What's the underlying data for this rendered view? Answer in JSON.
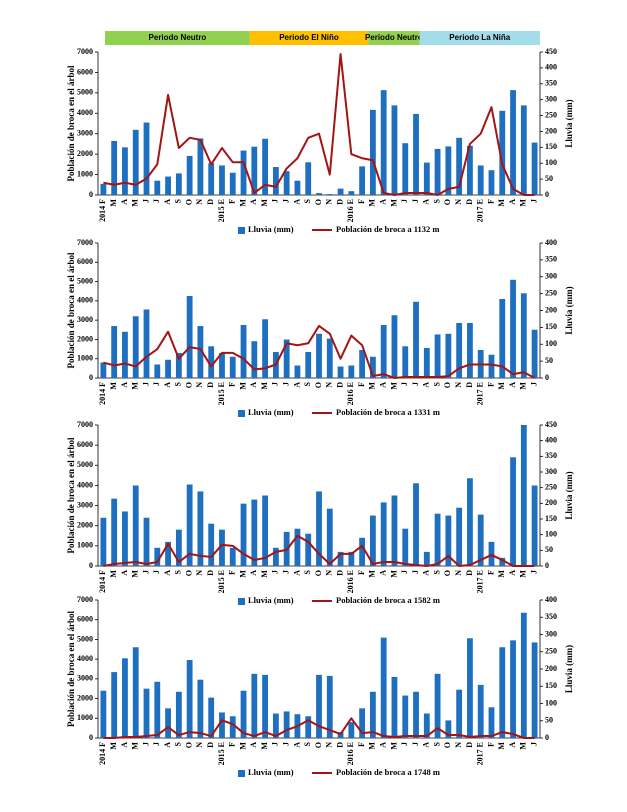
{
  "chart_data": [
    {
      "type": "combo",
      "periods": [
        {
          "label": "Periodo Neutro",
          "color": "#92d050"
        },
        {
          "label": "Periodo El Niño",
          "color": "#ffc000"
        },
        {
          "label": "Periodo Neutro",
          "color": "#92d050"
        },
        {
          "label": "Periodo La Niña",
          "color": "#a5dcea"
        }
      ],
      "y_label": "Población de broca en el árbol",
      "y2_label": "Lluvia (mm)",
      "categories": [
        "2014 F",
        "M",
        "A",
        "M",
        "J",
        "J",
        "A",
        "S",
        "O",
        "N",
        "D",
        "2015 E",
        "F",
        "M",
        "A",
        "M",
        "J",
        "J",
        "A",
        "S",
        "O",
        "N",
        "D",
        "2016 E",
        "F",
        "M",
        "A",
        "M",
        "J",
        "J",
        "A",
        "S",
        "O",
        "N",
        "D",
        "2017 E",
        "F",
        "M",
        "A",
        "M",
        "J"
      ],
      "ylim": [
        0,
        7000
      ],
      "yticks": [
        0,
        1000,
        2000,
        3000,
        4000,
        5000,
        6000,
        7000
      ],
      "y2lim": [
        0,
        450
      ],
      "y2ticks": [
        0,
        50,
        100,
        150,
        200,
        250,
        300,
        350,
        400,
        450
      ],
      "series": [
        {
          "name": "Lluvia (mm)",
          "type": "bar",
          "axis": "y2",
          "color": "#1f6fc0",
          "values": [
            35,
            170,
            150,
            205,
            228,
            45,
            58,
            68,
            123,
            178,
            100,
            93,
            70,
            140,
            152,
            177,
            88,
            75,
            45,
            103,
            6,
            3,
            20,
            12,
            90,
            268,
            330,
            282,
            163,
            255,
            102,
            145,
            153,
            180,
            155,
            93,
            78,
            265,
            330,
            282,
            165
          ]
        },
        {
          "name": "Población de broca a 1132 m",
          "type": "line",
          "color": "#a31515",
          "values": [
            600,
            500,
            600,
            500,
            800,
            1500,
            4900,
            2300,
            2800,
            2700,
            1500,
            2300,
            1600,
            1600,
            100,
            500,
            400,
            1300,
            1800,
            2800,
            3000,
            1000,
            6900,
            2000,
            1800,
            1700,
            100,
            0,
            100,
            100,
            100,
            0,
            300,
            400,
            2500,
            3000,
            4300,
            1500,
            300,
            0,
            0
          ]
        }
      ]
    },
    {
      "type": "combo",
      "y_label": "Población de broca en el árbol",
      "y2_label": "Lluvia (mm)",
      "categories": [
        "2014 F",
        "M",
        "A",
        "M",
        "J",
        "J",
        "A",
        "S",
        "O",
        "N",
        "D",
        "2015 E",
        "F",
        "M",
        "A",
        "M",
        "J",
        "J",
        "A",
        "S",
        "O",
        "N",
        "D",
        "2016 E",
        "F",
        "M",
        "A",
        "M",
        "J",
        "J",
        "A",
        "S",
        "O",
        "N",
        "D",
        "2017 E",
        "F",
        "M",
        "A",
        "M",
        "J"
      ],
      "ylim": [
        0,
        7000
      ],
      "yticks": [
        0,
        1000,
        2000,
        3000,
        4000,
        5000,
        6000,
        7000
      ],
      "y2lim": [
        0,
        400
      ],
      "y2ticks": [
        0,
        50,
        100,
        150,
        200,
        250,
        300,
        350,
        400
      ],
      "series": [
        {
          "name": "Lluvia (mm)",
          "type": "bar",
          "axis": "y2",
          "color": "#1f6fc0",
          "values": [
            46,
            154,
            137,
            183,
            203,
            40,
            54,
            74,
            243,
            154,
            94,
            74,
            63,
            157,
            109,
            174,
            77,
            114,
            37,
            77,
            131,
            117,
            34,
            37,
            83,
            63,
            157,
            186,
            94,
            226,
            89,
            129,
            131,
            163,
            163,
            83,
            69,
            234,
            291,
            251,
            143
          ]
        },
        {
          "name": "Población de broca a 1331 m",
          "type": "line",
          "color": "#a31515",
          "values": [
            800,
            650,
            750,
            600,
            1100,
            1500,
            2400,
            1000,
            1600,
            1500,
            600,
            1300,
            1300,
            1000,
            450,
            500,
            700,
            1800,
            1700,
            1800,
            2700,
            2300,
            1000,
            2200,
            1700,
            100,
            200,
            0,
            50,
            50,
            50,
            50,
            100,
            500,
            700,
            700,
            700,
            600,
            200,
            300,
            0
          ]
        }
      ]
    },
    {
      "type": "combo",
      "y_label": "Población de broca en el árbol",
      "y2_label": "Lluvia (mm)",
      "categories": [
        "2014 F",
        "M",
        "A",
        "M",
        "J",
        "J",
        "A",
        "S",
        "O",
        "N",
        "D",
        "2015 E",
        "F",
        "M",
        "A",
        "M",
        "J",
        "J",
        "A",
        "S",
        "O",
        "N",
        "D",
        "2016 E",
        "F",
        "M",
        "A",
        "M",
        "J",
        "J",
        "A",
        "S",
        "O",
        "N",
        "D",
        "2017 E",
        "F",
        "M",
        "A",
        "M",
        "J"
      ],
      "ylim": [
        0,
        7000
      ],
      "yticks": [
        0,
        1000,
        2000,
        3000,
        4000,
        5000,
        6000,
        7000
      ],
      "y2lim": [
        0,
        450
      ],
      "y2ticks": [
        0,
        50,
        100,
        150,
        200,
        250,
        300,
        350,
        400,
        450
      ],
      "series": [
        {
          "name": "Lluvia (mm)",
          "type": "bar",
          "axis": "y2",
          "color": "#1f6fc0",
          "values": [
            154,
            215,
            174,
            257,
            154,
            58,
            77,
            116,
            260,
            238,
            135,
            116,
            58,
            199,
            212,
            225,
            58,
            109,
            119,
            103,
            238,
            183,
            45,
            45,
            90,
            161,
            203,
            225,
            119,
            264,
            45,
            167,
            161,
            186,
            280,
            164,
            77,
            26,
            347,
            450,
            257
          ]
        },
        {
          "name": "Población de broca a 1582 m",
          "type": "line",
          "color": "#a31515",
          "values": [
            0,
            100,
            150,
            200,
            100,
            200,
            1100,
            200,
            600,
            500,
            450,
            1050,
            1000,
            600,
            300,
            400,
            700,
            800,
            1500,
            1200,
            600,
            100,
            600,
            600,
            1000,
            100,
            200,
            200,
            100,
            50,
            0,
            100,
            500,
            0,
            50,
            300,
            550,
            300,
            0,
            0,
            0
          ]
        }
      ]
    },
    {
      "type": "combo",
      "y_label": "Población de broca en el árbol",
      "y2_label": "Lluvia (mm)",
      "categories": [
        "2014 F",
        "M",
        "A",
        "M",
        "J",
        "J",
        "A",
        "S",
        "O",
        "N",
        "D",
        "2015 E",
        "F",
        "M",
        "A",
        "M",
        "J",
        "J",
        "A",
        "S",
        "O",
        "N",
        "D",
        "2016 E",
        "F",
        "M",
        "A",
        "M",
        "J",
        "J",
        "A",
        "S",
        "O",
        "N",
        "D",
        "2017 E",
        "F",
        "M",
        "A",
        "M",
        "J"
      ],
      "ylim": [
        0,
        7000
      ],
      "yticks": [
        0,
        1000,
        2000,
        3000,
        4000,
        5000,
        6000,
        7000
      ],
      "y2lim": [
        0,
        400
      ],
      "y2ticks": [
        0,
        50,
        100,
        150,
        200,
        250,
        300,
        350,
        400
      ],
      "series": [
        {
          "name": "Lluvia (mm)",
          "type": "bar",
          "axis": "y2",
          "color": "#1f6fc0",
          "values": [
            137,
            191,
            231,
            263,
            143,
            163,
            86,
            134,
            226,
            169,
            117,
            74,
            63,
            137,
            186,
            183,
            71,
            77,
            69,
            63,
            183,
            180,
            17,
            46,
            86,
            134,
            291,
            177,
            123,
            134,
            71,
            186,
            51,
            140,
            289,
            154,
            89,
            263,
            283,
            363,
            277
          ]
        },
        {
          "name": "Población de broca a 1748 m",
          "type": "line",
          "color": "#a31515",
          "values": [
            0,
            0,
            50,
            50,
            100,
            150,
            550,
            150,
            300,
            250,
            100,
            900,
            700,
            250,
            100,
            300,
            100,
            400,
            600,
            900,
            600,
            400,
            200,
            1000,
            250,
            300,
            100,
            50,
            100,
            100,
            100,
            500,
            150,
            150,
            50,
            100,
            100,
            300,
            200,
            0,
            0
          ]
        }
      ]
    }
  ]
}
